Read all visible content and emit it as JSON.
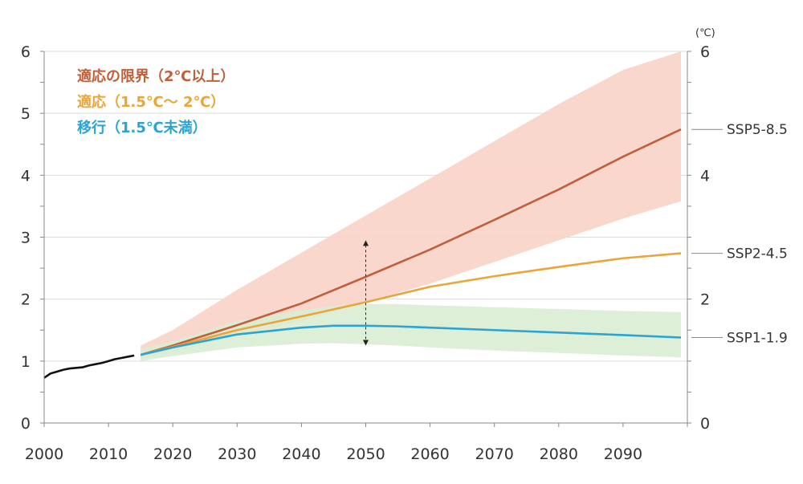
{
  "chart_data": {
    "type": "line",
    "title": "",
    "xlabel": "",
    "ylabel": "",
    "unit_right": "(℃)",
    "xlim": [
      2000,
      2100
    ],
    "ylim": [
      0,
      6
    ],
    "x_ticks": [
      "2000",
      "2010",
      "2020",
      "2030",
      "2040",
      "2050",
      "2060",
      "2070",
      "2080",
      "2090"
    ],
    "y_ticks_left": [
      "0",
      "1",
      "2",
      "3",
      "4",
      "5",
      "6"
    ],
    "y_ticks_right": [
      "0",
      "2",
      "4",
      "6"
    ],
    "grid": "horizontal",
    "legend_position": "top-left",
    "legend": [
      {
        "label": "適応の限界（2℃以上）",
        "color": "#c0603a"
      },
      {
        "label": "適応（1.5℃〜 2℃）",
        "color": "#e8a63a"
      },
      {
        "label": "移行（1.5℃未満）",
        "color": "#2ba3d3"
      }
    ],
    "historical": {
      "color": "#111111",
      "x": [
        2000,
        2001,
        2002,
        2003,
        2004,
        2005,
        2006,
        2007,
        2008,
        2009,
        2010,
        2011,
        2012,
        2013,
        2014
      ],
      "y": [
        0.73,
        0.8,
        0.83,
        0.86,
        0.88,
        0.89,
        0.9,
        0.93,
        0.95,
        0.97,
        1.0,
        1.03,
        1.05,
        1.07,
        1.09
      ]
    },
    "series": [
      {
        "name": "SSP5-8.5",
        "color": "#c0603a",
        "band_color": "#f9d3c6",
        "x": [
          2015,
          2020,
          2030,
          2040,
          2050,
          2060,
          2070,
          2080,
          2090,
          2099
        ],
        "y": [
          1.1,
          1.25,
          1.58,
          1.93,
          2.36,
          2.8,
          3.28,
          3.77,
          4.3,
          4.74
        ],
        "upper": [
          1.25,
          1.5,
          2.15,
          2.75,
          3.35,
          3.95,
          4.55,
          5.15,
          5.7,
          6.0
        ],
        "lower": [
          1.05,
          1.15,
          1.4,
          1.65,
          1.95,
          2.25,
          2.6,
          2.95,
          3.3,
          3.58
        ]
      },
      {
        "name": "SSP2-4.5",
        "color": "#e8a63a",
        "x": [
          2015,
          2020,
          2030,
          2040,
          2050,
          2060,
          2070,
          2080,
          2090,
          2099
        ],
        "y": [
          1.1,
          1.23,
          1.5,
          1.72,
          1.95,
          2.2,
          2.37,
          2.52,
          2.66,
          2.74
        ]
      },
      {
        "name": "SSP1-1.9",
        "color": "#2ba3d3",
        "band_color": "#d9edd3",
        "x": [
          2015,
          2020,
          2030,
          2040,
          2045,
          2050,
          2055,
          2060,
          2070,
          2080,
          2090,
          2099
        ],
        "y": [
          1.1,
          1.22,
          1.43,
          1.54,
          1.57,
          1.57,
          1.56,
          1.54,
          1.5,
          1.46,
          1.42,
          1.38
        ],
        "upper": [
          1.2,
          1.32,
          1.65,
          1.82,
          1.89,
          1.92,
          1.92,
          1.9,
          1.87,
          1.84,
          1.81,
          1.79
        ],
        "lower": [
          1.0,
          1.08,
          1.22,
          1.28,
          1.29,
          1.27,
          1.25,
          1.22,
          1.17,
          1.13,
          1.09,
          1.06
        ]
      }
    ],
    "annotations": [
      {
        "type": "double-arrow",
        "x": 2050,
        "y_from": 1.25,
        "y_to": 2.95
      }
    ]
  }
}
